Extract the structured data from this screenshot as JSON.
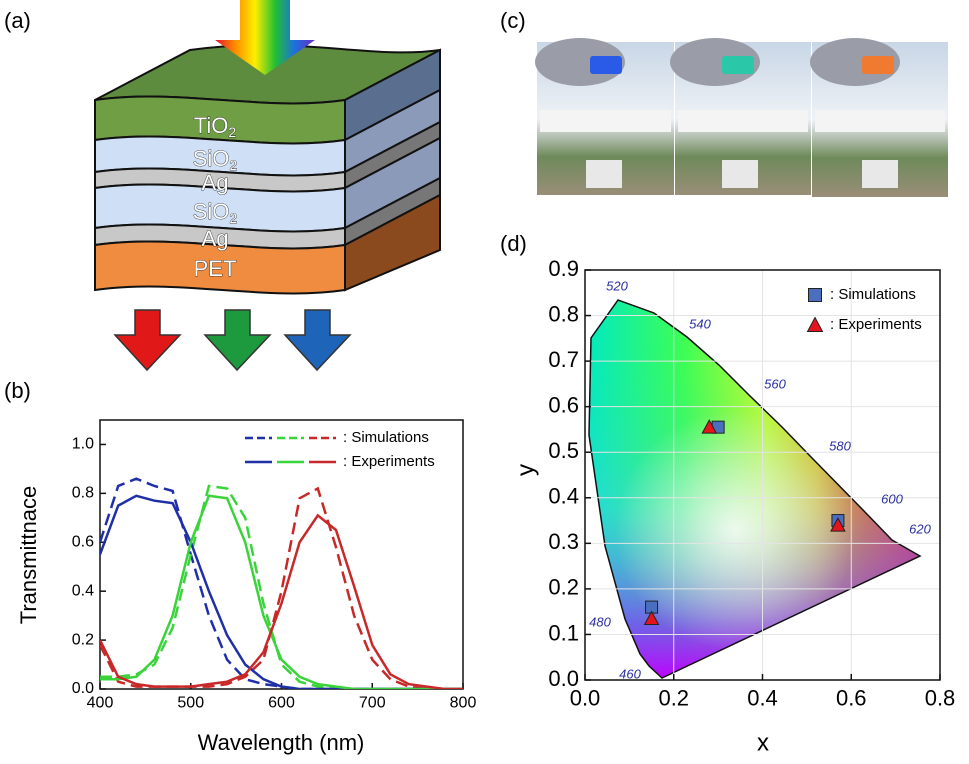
{
  "panel_labels": [
    "(a)",
    "(b)",
    "(c)",
    "(d)"
  ],
  "layers": [
    {
      "text": "TiO",
      "sub": "2"
    },
    {
      "text": "SiO",
      "sub": "2"
    },
    {
      "text": "Ag"
    },
    {
      "text": "SiO",
      "sub": "2"
    },
    {
      "text": "Ag"
    },
    {
      "text": "PET"
    }
  ],
  "chart_data": [
    {
      "type": "line",
      "x_label": "Wavelength (nm)",
      "y_label": "Transmittnace",
      "x": [
        400,
        420,
        440,
        460,
        480,
        500,
        520,
        540,
        560,
        580,
        600,
        620,
        640,
        660,
        680,
        700,
        720,
        740,
        760,
        780,
        800
      ],
      "xlim": [
        400,
        800
      ],
      "xticks": [
        400,
        500,
        600,
        700,
        800
      ],
      "ylim": [
        0,
        1.1
      ],
      "yticks": [
        {
          "value": 0,
          "label": "0.0"
        },
        0.2,
        0.4,
        0.6,
        0.8,
        {
          "value": 1,
          "label": "1.0"
        }
      ],
      "legend": [
        {
          "name": ": Simulations",
          "dash": true
        },
        {
          "name": ": Experiments",
          "dash": false
        }
      ],
      "series": [
        {
          "color": "#1f2fa8",
          "dash": true,
          "values": [
            0.6,
            0.83,
            0.86,
            0.83,
            0.81,
            0.55,
            0.3,
            0.12,
            0.04,
            0.02,
            0.01,
            0,
            0,
            0,
            0,
            0,
            0,
            0,
            0,
            0,
            0
          ]
        },
        {
          "color": "#3ad43a",
          "dash": true,
          "values": [
            0.05,
            0.05,
            0.06,
            0.1,
            0.25,
            0.55,
            0.83,
            0.82,
            0.7,
            0.35,
            0.1,
            0.03,
            0.01,
            0,
            0,
            0,
            0,
            0,
            0,
            0,
            0
          ]
        },
        {
          "color": "#c82828",
          "dash": true,
          "values": [
            0.18,
            0.03,
            0.01,
            0.01,
            0.01,
            0.01,
            0.01,
            0.02,
            0.05,
            0.12,
            0.4,
            0.78,
            0.82,
            0.58,
            0.3,
            0.12,
            0.04,
            0.01,
            0,
            0,
            0
          ]
        },
        {
          "color": "#1f2fa8",
          "dash": false,
          "values": [
            0.55,
            0.75,
            0.79,
            0.77,
            0.76,
            0.6,
            0.4,
            0.22,
            0.1,
            0.04,
            0.01,
            0,
            0,
            0,
            0,
            0,
            0,
            0,
            0,
            0,
            0
          ]
        },
        {
          "color": "#3ad43a",
          "dash": false,
          "values": [
            0.04,
            0.04,
            0.05,
            0.12,
            0.3,
            0.6,
            0.79,
            0.78,
            0.6,
            0.3,
            0.12,
            0.05,
            0.02,
            0.01,
            0,
            0,
            0,
            0,
            0,
            0,
            0
          ]
        },
        {
          "color": "#c82828",
          "dash": false,
          "values": [
            0.2,
            0.05,
            0.02,
            0.01,
            0.01,
            0.01,
            0.02,
            0.03,
            0.06,
            0.15,
            0.35,
            0.6,
            0.71,
            0.65,
            0.42,
            0.18,
            0.06,
            0.02,
            0.01,
            0,
            0
          ]
        }
      ]
    },
    {
      "type": "scatter",
      "x_label": "x",
      "y_label": "y",
      "xlim": [
        0,
        0.8
      ],
      "xticks": [
        {
          "value": 0,
          "label": "0.0"
        },
        0.2,
        0.4,
        0.6,
        0.8
      ],
      "ylim": [
        0,
        0.9
      ],
      "yticks": [
        {
          "value": 0,
          "label": "0.0"
        },
        0.1,
        0.2,
        0.3,
        0.4,
        0.5,
        0.6,
        0.7,
        0.8,
        0.9
      ],
      "grid": true,
      "wavelength_labels": [
        "460",
        "480",
        "520",
        "540",
        "560",
        "580",
        "600",
        "620"
      ],
      "series": [
        {
          "name": ": Simulations",
          "marker": "square",
          "color": "#4a6fbf",
          "x": [
            0.15,
            0.3,
            0.57
          ],
          "values": [
            0.16,
            0.555,
            0.35
          ]
        },
        {
          "name": ": Experiments",
          "marker": "triangle",
          "color": "#e3141c",
          "x": [
            0.15,
            0.28,
            0.57
          ],
          "values": [
            0.135,
            0.555,
            0.34
          ]
        }
      ]
    }
  ]
}
